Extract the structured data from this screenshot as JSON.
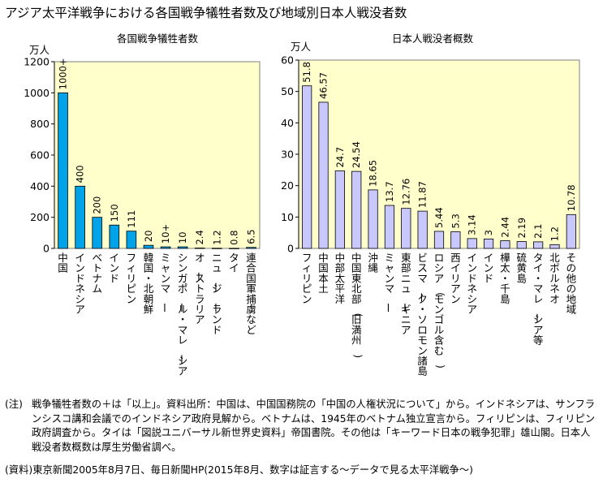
{
  "title": "アジア太平洋戦争における各国戦争犠牲者数及び地域別日本人戦没者数",
  "colors": {
    "plot_bg": "#ffffcc",
    "bar_left": "#00a2e8",
    "bar_right": "#c8c8ff",
    "bar_stroke": "#000000",
    "axis": "#808080"
  },
  "chart_data": [
    {
      "type": "bar",
      "title": "各国戦争犠牲者数",
      "ylabel": "万人",
      "ylim": [
        0,
        1200
      ],
      "yticks": [
        0,
        200,
        400,
        600,
        800,
        1000,
        1200
      ],
      "categories": [
        "中国",
        "インドネシア",
        "ベトナム",
        "インド",
        "フィリピン",
        "韓国・北朝鮮",
        "ミャンマー",
        "シンガポール・マレーシア",
        "オーストラリア",
        "ニュージーランド",
        "タイ",
        "連合国軍捕虜など"
      ],
      "values": [
        1000,
        400,
        200,
        150,
        111,
        20,
        10,
        10,
        2.4,
        1.2,
        0.8,
        6.5
      ],
      "data_labels": [
        "1000+",
        "400",
        "200",
        "150",
        "111",
        "20",
        "10+",
        "10",
        "2.4",
        "1.2",
        "0.8",
        "6.5"
      ]
    },
    {
      "type": "bar",
      "title": "日本人戦没者概数",
      "ylabel": "万人",
      "ylim": [
        0,
        60
      ],
      "yticks": [
        0,
        10,
        20,
        30,
        40,
        50,
        60
      ],
      "categories": [
        "フィリピン",
        "中国本土",
        "中部太平洋",
        "中国東北部(旧満州)",
        "沖縄",
        "ミャンマー",
        "東部ニューギニア",
        "ビスマーク・ソロモン諸島",
        "ロシア(モンゴル含む)",
        "西イリアン",
        "インドネシア",
        "インド",
        "樺太・千島",
        "硫黄島",
        "タイ・マレーシア等",
        "北ボルネオ",
        "その他の地域"
      ],
      "values": [
        51.8,
        46.57,
        24.7,
        24.54,
        18.65,
        13.7,
        12.76,
        11.87,
        5.44,
        5.3,
        3.14,
        3,
        2.44,
        2.19,
        2.1,
        1.2,
        10.78
      ],
      "data_labels": [
        "51.8",
        "46.57",
        "24.7",
        "24.54",
        "18.65",
        "13.7",
        "12.76",
        "11.87",
        "5.44",
        "5.3",
        "3.14",
        "3",
        "2.44",
        "2.19",
        "2.1",
        "1.2",
        "10.78"
      ]
    }
  ],
  "notes": {
    "label": "(注)",
    "text": "戦争犠牲者数の＋は「以上」。資料出所：中国は、中国国務院の「中国の人権状況について」から。インドネシアは、サンフランシスコ講和会議でのインドネシア政府見解から。ベトナムは、1945年のベトナム独立宣言から。フィリピンは、フィリピン政府調査から。タイは「図説ユニバーサル新世界史資料」帝国書院。その他は「キーワード日本の戦争犯罪」雄山閣。日本人戦没者数概数は厚生労働省調べ。"
  },
  "source": "(資料)東京新聞2005年8月7日、毎日新聞HP(2015年8月、数字は証言する～データで見る太平洋戦争～)"
}
